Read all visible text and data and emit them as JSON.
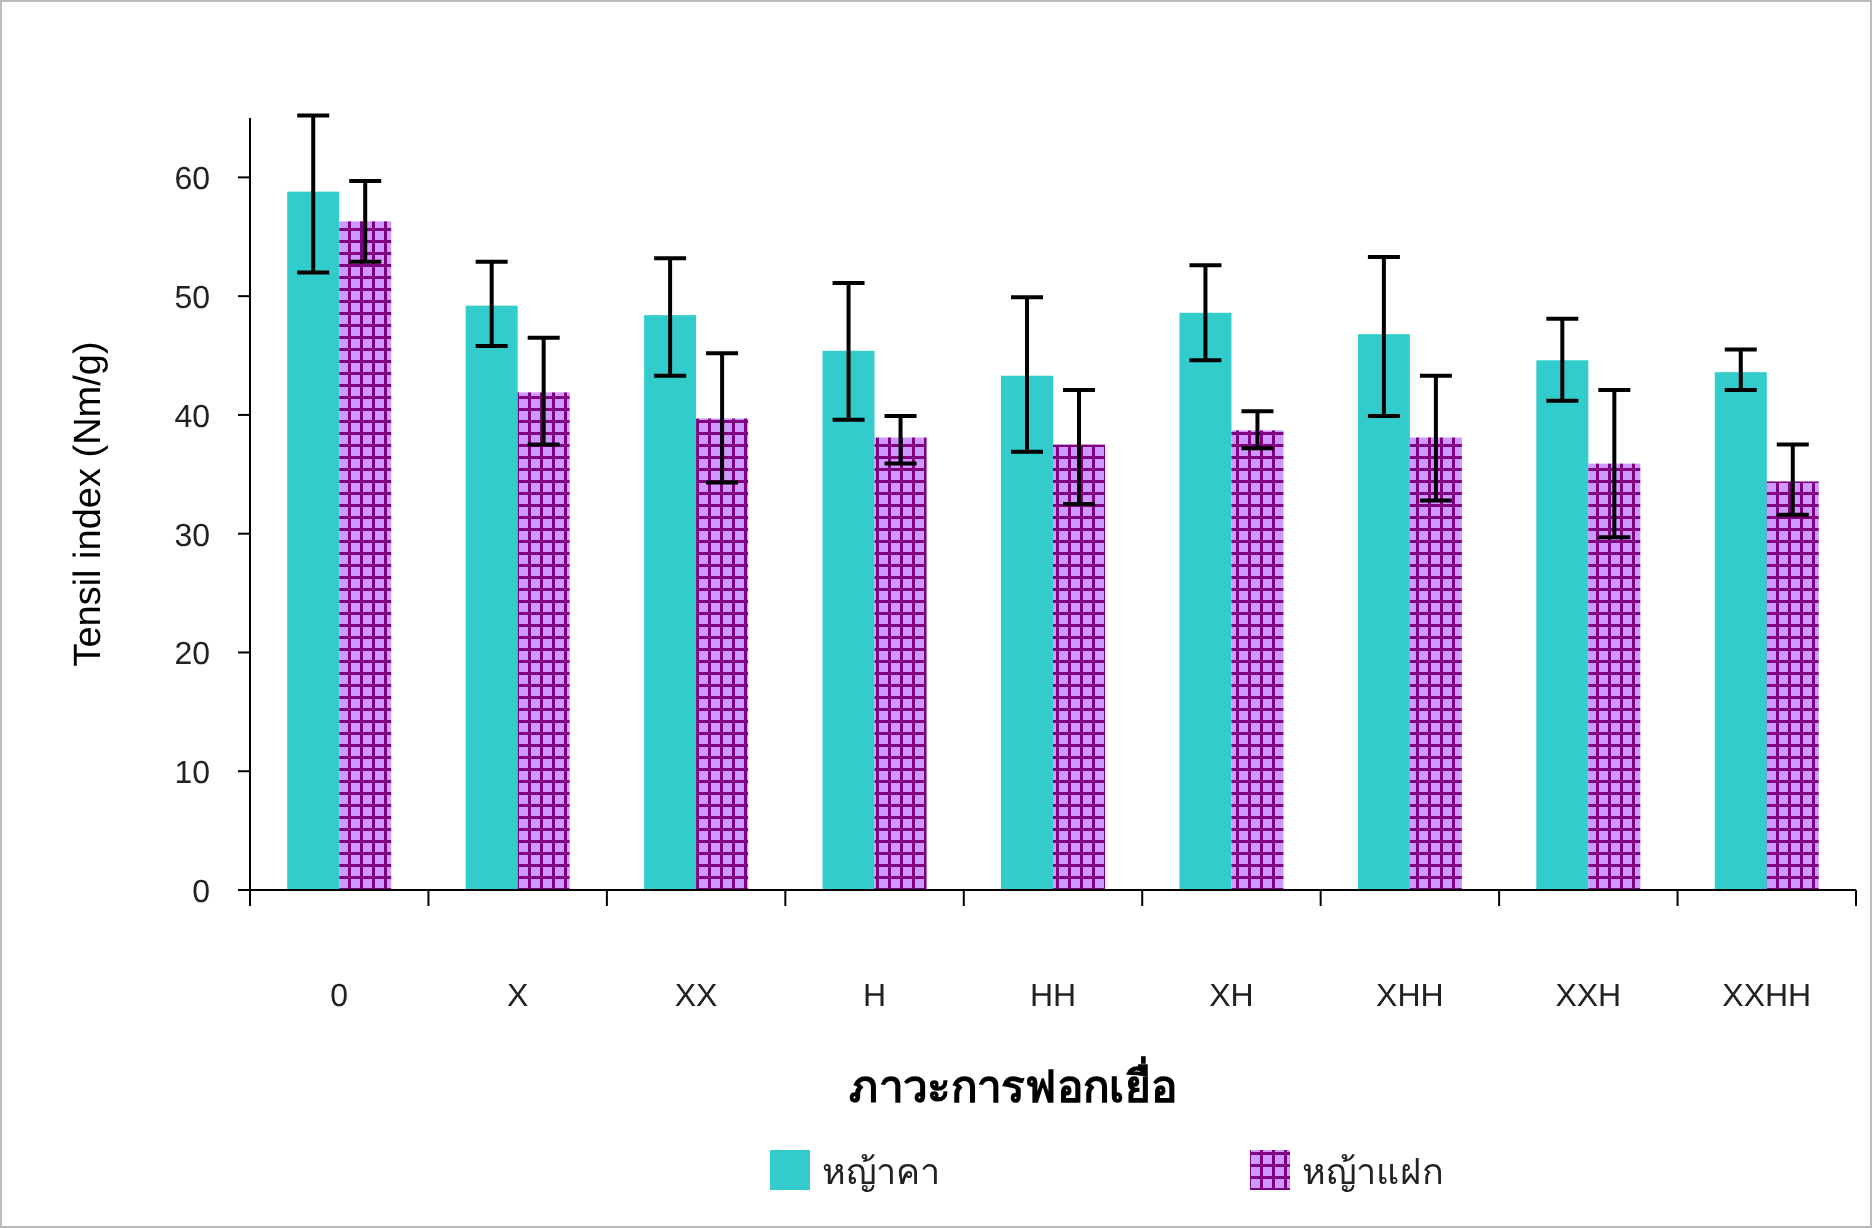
{
  "chart_data": {
    "type": "bar",
    "xlabel": "ภาวะการฟอกเยื่อ",
    "ylabel": "Tensil index (Nm/g)",
    "categories": [
      "0",
      "X",
      "XX",
      "H",
      "HH",
      "XH",
      "XHH",
      "XXH",
      "XXHH"
    ],
    "series": [
      {
        "name": "หญ้าคา",
        "color": "#33cccc",
        "values": [
          58.8,
          49.2,
          48.4,
          45.4,
          43.3,
          48.6,
          46.8,
          44.6,
          43.6
        ],
        "errors": [
          [
            52.0,
            65.2
          ],
          [
            45.8,
            52.9
          ],
          [
            43.3,
            53.2
          ],
          [
            39.6,
            51.1
          ],
          [
            36.9,
            49.9
          ],
          [
            44.6,
            52.6
          ],
          [
            39.9,
            53.3
          ],
          [
            41.2,
            48.1
          ],
          [
            42.1,
            45.5
          ]
        ]
      },
      {
        "name": "หญ้าแฝก",
        "color": "#cc99ff",
        "values": [
          56.3,
          41.9,
          39.7,
          38.1,
          37.5,
          38.7,
          38.1,
          35.9,
          34.4
        ],
        "errors": [
          [
            52.9,
            59.7
          ],
          [
            37.5,
            46.5
          ],
          [
            34.3,
            45.2
          ],
          [
            35.9,
            39.9
          ],
          [
            32.5,
            42.1
          ],
          [
            37.2,
            40.3
          ],
          [
            32.8,
            43.3
          ],
          [
            29.7,
            42.1
          ],
          [
            31.6,
            37.5
          ]
        ]
      }
    ],
    "ylim": [
      0,
      65
    ],
    "yticks": [
      0,
      10,
      20,
      30,
      40,
      50,
      60
    ],
    "grid": false,
    "legend": "bottom"
  }
}
